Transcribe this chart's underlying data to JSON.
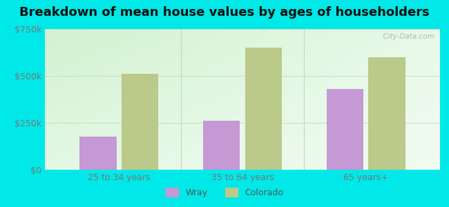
{
  "title": "Breakdown of mean house values by ages of householders",
  "categories": [
    "25 to 34 years",
    "35 to 64 years",
    "65 years+"
  ],
  "wray_values": [
    175000,
    260000,
    430000
  ],
  "colorado_values": [
    510000,
    650000,
    600000
  ],
  "wray_color": "#c499d4",
  "colorado_color": "#bbc98a",
  "background_outer": "#00e8e8",
  "ylim": [
    0,
    750000
  ],
  "yticks": [
    0,
    250000,
    500000,
    750000
  ],
  "ytick_labels": [
    "$0",
    "$250k",
    "$500k",
    "$750k"
  ],
  "bar_width": 0.3,
  "legend_labels": [
    "Wray",
    "Colorado"
  ],
  "watermark": "  City-Data.com",
  "title_fontsize": 13,
  "tick_fontsize": 9,
  "legend_fontsize": 9
}
